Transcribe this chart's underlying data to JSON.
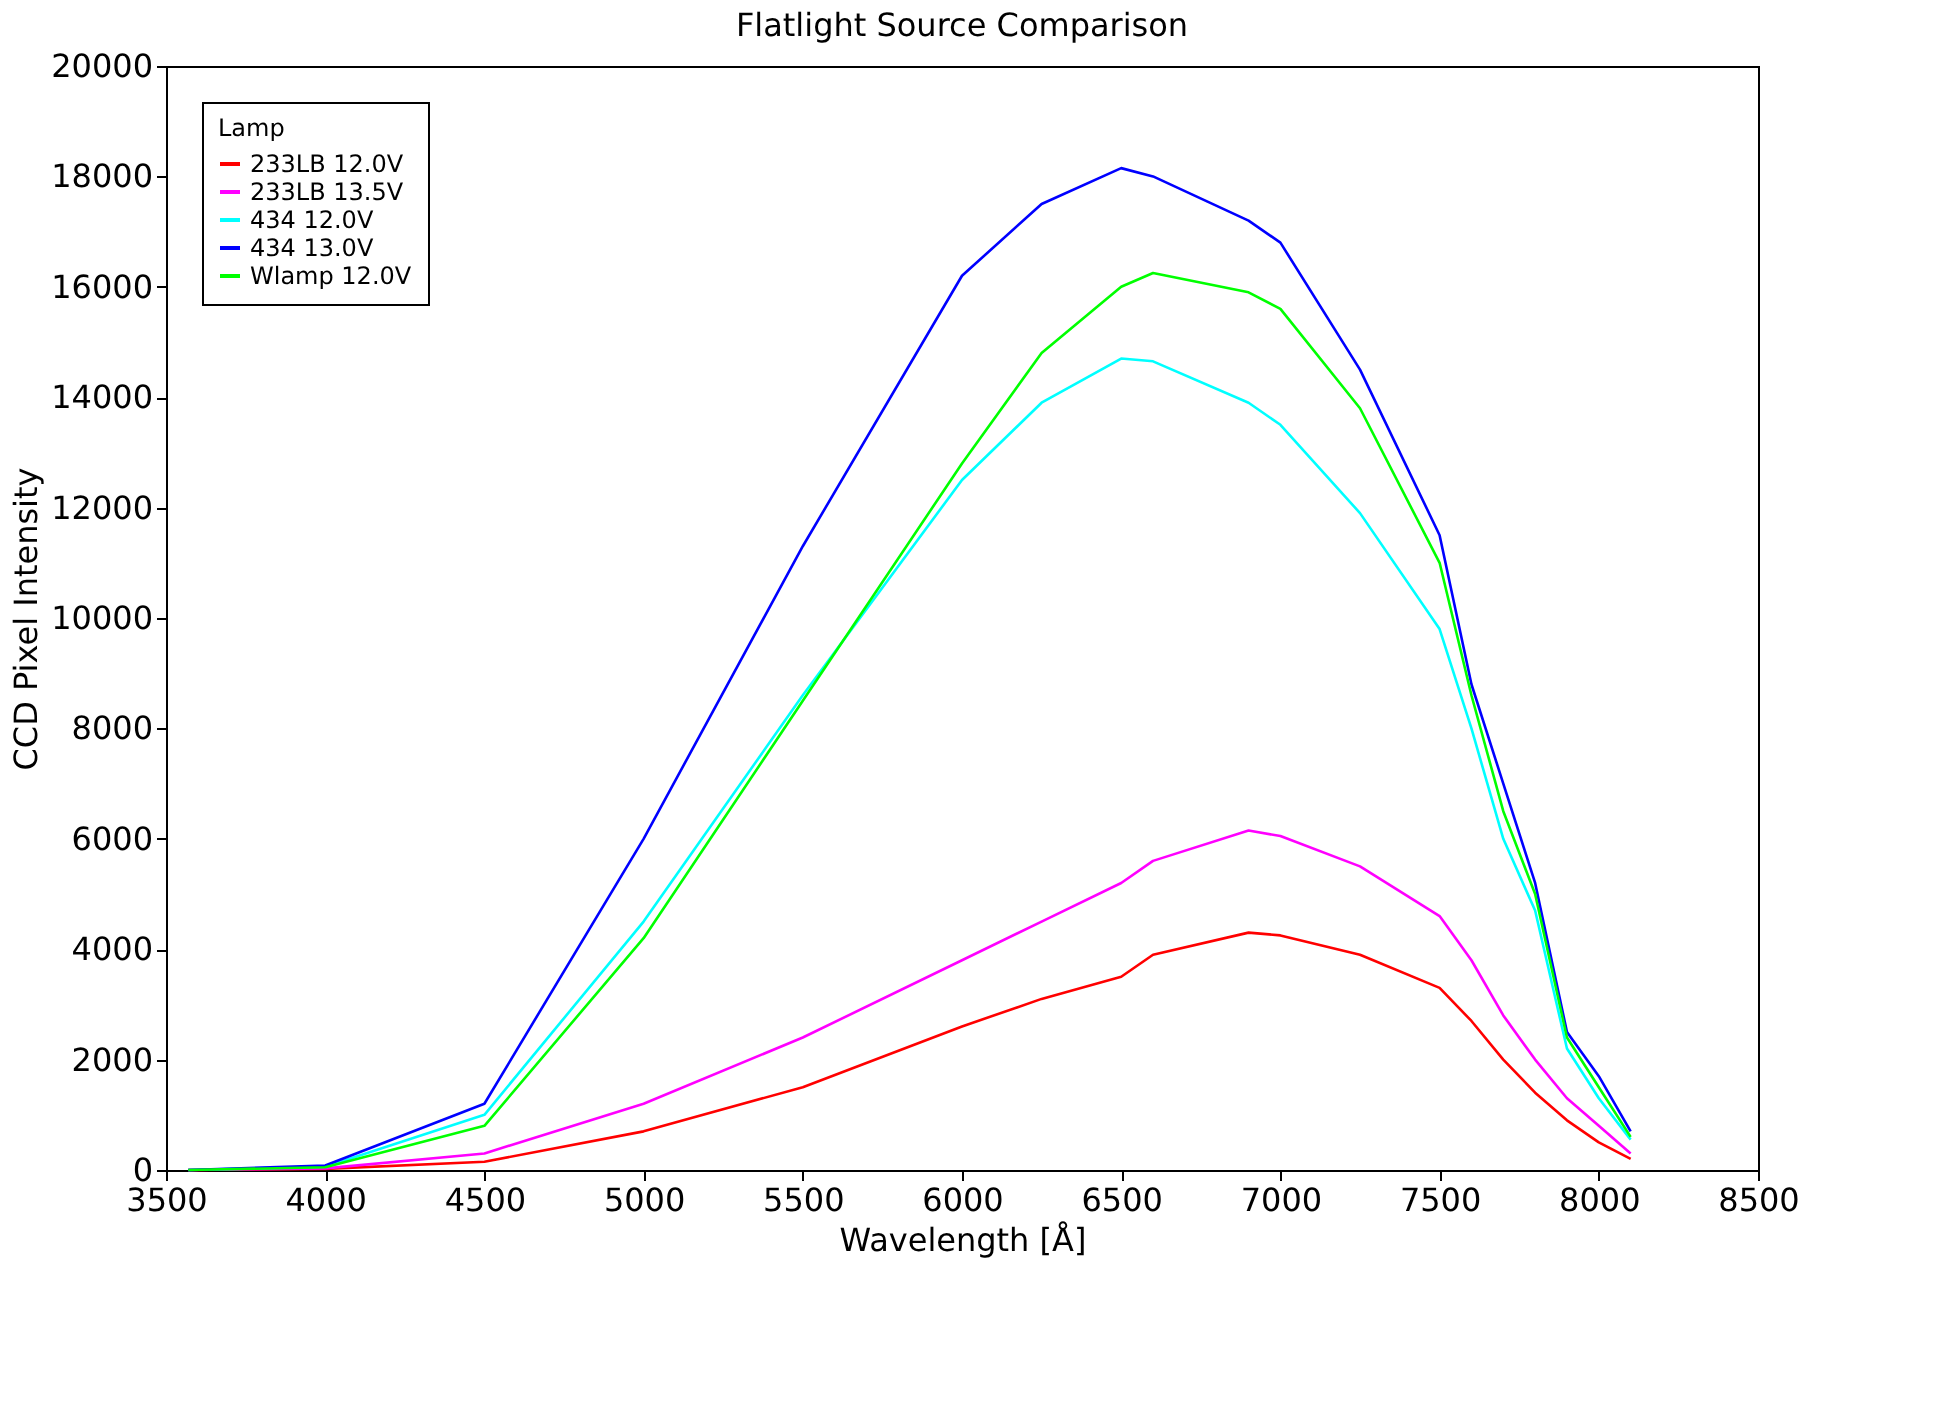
{
  "chart_data": {
    "type": "line",
    "title": "Flatlight Source Comparison",
    "xlabel": "Wavelength [Å]",
    "ylabel": "CCD Pixel Intensity",
    "legend_title": "Lamp",
    "legend": "top left",
    "grid": false,
    "marker": "none",
    "line_style": "solid",
    "xlim": [
      3500,
      8500
    ],
    "xticks": [
      3500,
      4000,
      4500,
      5000,
      5500,
      6000,
      6500,
      7000,
      7500,
      8000,
      8500
    ],
    "ylim": [
      0,
      20000
    ],
    "yticks": [
      0,
      2000,
      4000,
      6000,
      8000,
      10000,
      12000,
      14000,
      16000,
      18000,
      20000
    ],
    "x": [
      3570,
      4000,
      4500,
      5000,
      5500,
      6000,
      6250,
      6500,
      6600,
      6900,
      7000,
      7250,
      7500,
      7600,
      7700,
      7800,
      7900,
      8000,
      8100
    ],
    "series": [
      {
        "name": "233LB 12.0V",
        "color": "#ff0000",
        "values": [
          0,
          20,
          150,
          700,
          1500,
          2600,
          3100,
          3500,
          3900,
          4300,
          4250,
          3900,
          3300,
          2700,
          2000,
          1400,
          900,
          500,
          200
        ]
      },
      {
        "name": "233LB 13.5V",
        "color": "#ff00ff",
        "values": [
          0,
          30,
          300,
          1200,
          2400,
          3800,
          4500,
          5200,
          5600,
          6150,
          6050,
          5500,
          4600,
          3800,
          2800,
          2000,
          1300,
          800,
          300
        ]
      },
      {
        "name": "434 12.0V",
        "color": "#00ffff",
        "values": [
          0,
          60,
          1000,
          4500,
          8600,
          12500,
          13900,
          14700,
          14650,
          13900,
          13500,
          11900,
          9800,
          8000,
          6000,
          4700,
          2200,
          1300,
          550
        ]
      },
      {
        "name": "434 13.0V",
        "color": "#0000ff",
        "values": [
          0,
          80,
          1200,
          6000,
          11300,
          16200,
          17500,
          18150,
          18000,
          17200,
          16800,
          14500,
          11500,
          8800,
          7000,
          5200,
          2500,
          1700,
          700
        ]
      },
      {
        "name": "Wlamp 12.0V",
        "color": "#00ff00",
        "values": [
          0,
          50,
          800,
          4200,
          8500,
          12800,
          14800,
          16000,
          16250,
          15900,
          15600,
          13800,
          11000,
          8600,
          6500,
          5000,
          2400,
          1500,
          600
        ]
      }
    ]
  }
}
